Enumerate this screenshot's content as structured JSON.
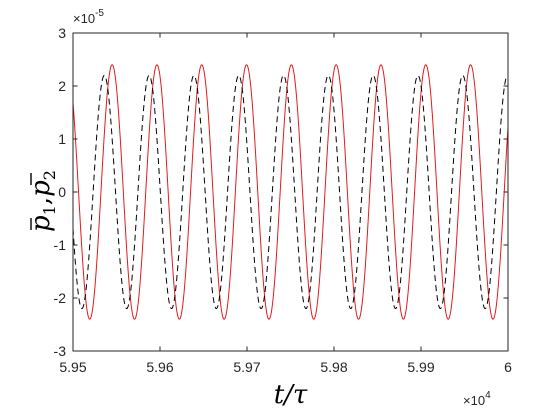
{
  "chart_data": {
    "type": "line",
    "xlabel": "t/τ",
    "ylabel_parts": [
      "p",
      "1",
      ",",
      "p",
      "2"
    ],
    "x_ticks": [
      5.95,
      5.96,
      5.97,
      5.98,
      5.99,
      6.0
    ],
    "x_tick_labels": [
      "5.95",
      "5.96",
      "5.97",
      "5.98",
      "5.99",
      "6"
    ],
    "x_multiplier": "×10",
    "x_exponent": "4",
    "y_ticks": [
      -3,
      -2,
      -1,
      0,
      1,
      2,
      3
    ],
    "y_tick_labels": [
      "-3",
      "-2",
      "-1",
      "0",
      "1",
      "2",
      "3"
    ],
    "y_multiplier": "×10",
    "y_exponent": "-5",
    "xlim": [
      5.95,
      6.0
    ],
    "ylim": [
      -3,
      3
    ],
    "grid": false,
    "series": [
      {
        "color": "#e41a1c",
        "line_style": "solid",
        "amplitude": 2.4,
        "period": 0.00515,
        "phase_reference_x": 5.9545,
        "phase_reference": "peak"
      },
      {
        "color": "#000000",
        "line_style": "dashed",
        "amplitude": 2.2,
        "period": 0.00515,
        "phase_reference_x": 5.9536,
        "phase_reference": "peak"
      }
    ]
  }
}
